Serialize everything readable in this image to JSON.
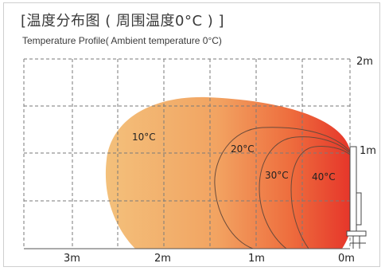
{
  "header": {
    "title": "[温度分布图 ( 周围温度0°C ) ]",
    "subtitle": "Temperature Profile( Ambient temperature 0°C)"
  },
  "axes": {
    "x_ticks": [
      "3m",
      "2m",
      "1m",
      "0m"
    ],
    "y_ticks": [
      "2m",
      "1m"
    ]
  },
  "zones": [
    {
      "label": "10°C"
    },
    {
      "label": "20°C"
    },
    {
      "label": "30°C"
    },
    {
      "label": "40°C"
    }
  ],
  "colors": {
    "warm_start": "#f3c07b",
    "warm_mid": "#f08a4e",
    "hot": "#e8392a",
    "grid": "#7a7a7a"
  }
}
